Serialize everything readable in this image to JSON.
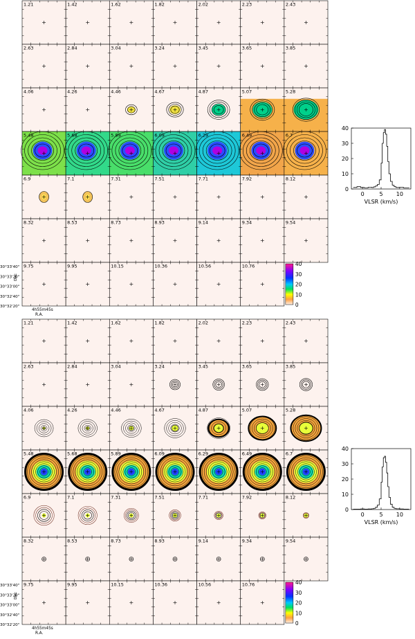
{
  "figure": {
    "velocities": [
      "1.21",
      "1.42",
      "1.62",
      "1.82",
      "2.02",
      "2.23",
      "2.43",
      "2.63",
      "2.84",
      "3.04",
      "3.24",
      "3.45",
      "3.65",
      "3.85",
      "4.06",
      "4.26",
      "4.46",
      "4.67",
      "4.87",
      "5.07",
      "5.28",
      "5.48",
      "5.68",
      "5.89",
      "6.09",
      "6.29",
      "6.49",
      "6.7",
      "6.9",
      "7.1",
      "7.31",
      "7.51",
      "7.71",
      "7.92",
      "8.12",
      "8.32",
      "8.53",
      "8.73",
      "8.93",
      "9.14",
      "9.34",
      "9.54",
      "9.75",
      "9.95",
      "10.15",
      "10.36",
      "10.56",
      "10.76"
    ],
    "dec_ticks": [
      "30°33'40\"",
      "30°33'20\"",
      "30°33'00\"",
      "30°32'40\"",
      "30°32'20\""
    ],
    "dec_axis_label": "Dec",
    "ra_tick": "4h55m45s",
    "ra_axis_label": "R.A.",
    "colorbar_ticks": [
      "40",
      "30",
      "20",
      "10",
      "0"
    ],
    "colorbar_colors": [
      "#ff1a8c",
      "#8000ff",
      "#0033ff",
      "#00c8ff",
      "#00e060",
      "#ffff00",
      "#ffa040",
      "#fff0e6"
    ]
  },
  "panels": [
    {
      "id": "top",
      "spectrum": {
        "type": "line",
        "yticks": [
          "40",
          "30",
          "20",
          "10",
          "0"
        ],
        "xticks": [
          "0",
          "5",
          "10"
        ],
        "xlabel": "VLSR (km/s)",
        "ylim": [
          0,
          40
        ],
        "xlim": [
          -3,
          13
        ],
        "x": [
          -2.5,
          -1.5,
          -0.5,
          0.5,
          1.5,
          2.5,
          3.0,
          3.5,
          4.0,
          4.5,
          5.0,
          5.3,
          5.6,
          5.9,
          6.2,
          6.5,
          6.8,
          7.1,
          7.5,
          8.0,
          8.5,
          9.0,
          10,
          11,
          12.5
        ],
        "y": [
          1.0,
          1.5,
          1.0,
          0.8,
          1.2,
          1.0,
          1.4,
          2.0,
          3.0,
          6.0,
          17.0,
          30.0,
          37.0,
          39.0,
          36.0,
          28.0,
          18.0,
          10.0,
          5.0,
          2.5,
          1.5,
          1.0,
          1.2,
          0.8,
          1.0
        ]
      }
    },
    {
      "id": "bottom",
      "spectrum": {
        "type": "line",
        "yticks": [
          "40",
          "30",
          "20",
          "10",
          "0"
        ],
        "xticks": [
          "0",
          "5",
          "10"
        ],
        "xlabel": "VLSR (km/s)",
        "ylim": [
          0,
          40
        ],
        "xlim": [
          -3,
          13
        ],
        "x": [
          -2.5,
          -1.5,
          -0.5,
          0.5,
          1.5,
          2.5,
          3.0,
          3.5,
          4.0,
          4.5,
          5.0,
          5.3,
          5.6,
          5.9,
          6.2,
          6.5,
          6.8,
          7.1,
          7.5,
          8.0,
          8.5,
          9.0,
          10,
          11,
          12.5
        ],
        "y": [
          0.3,
          0.3,
          0.4,
          0.3,
          0.4,
          0.5,
          0.8,
          1.5,
          3.0,
          7.0,
          18.0,
          28.0,
          34.0,
          35.0,
          31.0,
          24.0,
          15.0,
          8.0,
          3.5,
          1.5,
          0.8,
          0.5,
          0.4,
          0.3,
          0.3
        ]
      }
    }
  ]
}
